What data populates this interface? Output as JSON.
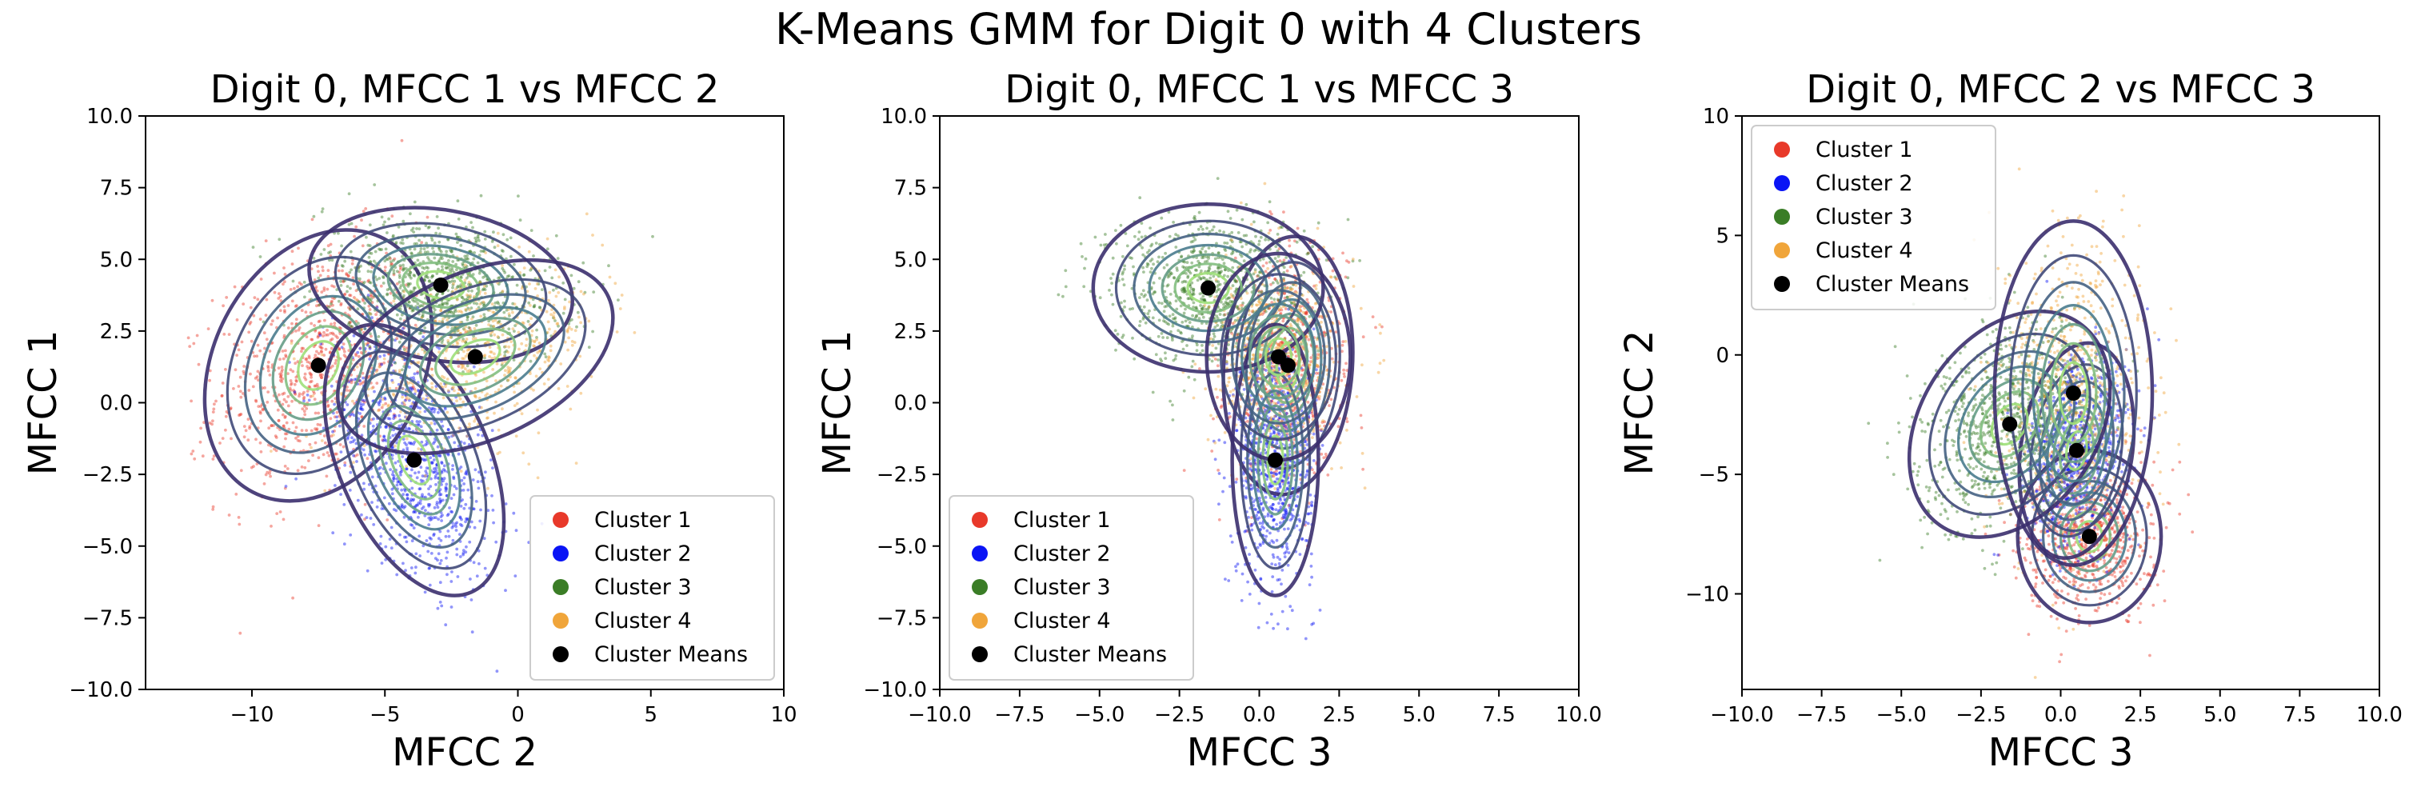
{
  "suptitle": "K-Means GMM for Digit 0 with 4 Clusters",
  "colors": {
    "cluster1": "#e8392a",
    "cluster2": "#0a14f5",
    "cluster3": "#3a7d26",
    "cluster4": "#f0a53a",
    "means": "#000000",
    "contour_outer": "#3b2f6e",
    "contour_mid": "#4a7c8e",
    "contour_inner": "#9fe07a"
  },
  "chart_data": [
    {
      "type": "scatter",
      "title": "Digit 0, MFCC 1 vs MFCC 2",
      "xlabel": "MFCC 2",
      "ylabel": "MFCC 1",
      "xlim": [
        -14,
        10
      ],
      "ylim": [
        -10,
        10
      ],
      "xticks": [
        -10,
        -5,
        0,
        5,
        10
      ],
      "xtick_labels": [
        "−10",
        "−5",
        "0",
        "5",
        "10"
      ],
      "yticks": [
        -10,
        -7.5,
        -5,
        -2.5,
        0,
        2.5,
        5,
        7.5,
        10
      ],
      "ytick_labels": [
        "−10.0",
        "−7.5",
        "−5.0",
        "−2.5",
        "0.0",
        "2.5",
        "5.0",
        "7.5",
        "10.0"
      ],
      "legend_placement": "lower-right",
      "legend": [
        "Cluster 1",
        "Cluster 2",
        "Cluster 3",
        "Cluster 4",
        "Cluster Means"
      ],
      "clusters": [
        {
          "name": "Cluster 1",
          "color": "#e8392a",
          "mean": [
            -7.5,
            1.3
          ],
          "sd": [
            1.9,
            2.1
          ],
          "rho": 0.25,
          "n": 900
        },
        {
          "name": "Cluster 2",
          "color": "#0a14f5",
          "mean": [
            -3.9,
            -2.0
          ],
          "sd": [
            1.5,
            2.1
          ],
          "rho": -0.45,
          "n": 900
        },
        {
          "name": "Cluster 3",
          "color": "#3a7d26",
          "mean": [
            -2.9,
            4.1
          ],
          "sd": [
            2.2,
            1.2
          ],
          "rho": -0.2,
          "n": 900
        },
        {
          "name": "Cluster 4",
          "color": "#f0a53a",
          "mean": [
            -1.6,
            1.6
          ],
          "sd": [
            2.3,
            1.5
          ],
          "rho": 0.4,
          "n": 650
        }
      ],
      "means_name": "Cluster Means"
    },
    {
      "type": "scatter",
      "title": "Digit 0, MFCC 1 vs MFCC 3",
      "xlabel": "MFCC 3",
      "ylabel": "MFCC 1",
      "xlim": [
        -10,
        10
      ],
      "ylim": [
        -10,
        10
      ],
      "xticks": [
        -10,
        -7.5,
        -5,
        -2.5,
        0,
        2.5,
        5,
        7.5,
        10
      ],
      "xtick_labels": [
        "−10.0",
        "−7.5",
        "−5.0",
        "−2.5",
        "0.0",
        "2.5",
        "5.0",
        "7.5",
        "10.0"
      ],
      "yticks": [
        -10,
        -7.5,
        -5,
        -2.5,
        0,
        2.5,
        5,
        7.5,
        10
      ],
      "ytick_labels": [
        "−10.0",
        "−7.5",
        "−5.0",
        "−2.5",
        "0.0",
        "2.5",
        "5.0",
        "7.5",
        "10.0"
      ],
      "legend_placement": "lower-left",
      "legend": [
        "Cluster 1",
        "Cluster 2",
        "Cluster 3",
        "Cluster 4",
        "Cluster Means"
      ],
      "clusters": [
        {
          "name": "Cluster 1",
          "color": "#e8392a",
          "mean": [
            0.9,
            1.3
          ],
          "sd": [
            0.9,
            2.0
          ],
          "rho": 0.1,
          "n": 700
        },
        {
          "name": "Cluster 2",
          "color": "#0a14f5",
          "mean": [
            0.5,
            -2.0
          ],
          "sd": [
            0.6,
            2.1
          ],
          "rho": 0.0,
          "n": 900
        },
        {
          "name": "Cluster 3",
          "color": "#3a7d26",
          "mean": [
            -1.6,
            4.0
          ],
          "sd": [
            1.6,
            1.3
          ],
          "rho": 0.0,
          "n": 900
        },
        {
          "name": "Cluster 4",
          "color": "#f0a53a",
          "mean": [
            0.6,
            1.6
          ],
          "sd": [
            1.0,
            1.6
          ],
          "rho": 0.0,
          "n": 700
        }
      ],
      "means_name": "Cluster Means"
    },
    {
      "type": "scatter",
      "title": "Digit 0, MFCC 2 vs MFCC 3",
      "xlabel": "MFCC 3",
      "ylabel": "MFCC 2",
      "xlim": [
        -10,
        10
      ],
      "ylim": [
        -14,
        10
      ],
      "xticks": [
        -10,
        -7.5,
        -5,
        -2.5,
        0,
        2.5,
        5,
        7.5,
        10
      ],
      "xtick_labels": [
        "−10.0",
        "−7.5",
        "−5.0",
        "−2.5",
        "0.0",
        "2.5",
        "5.0",
        "7.5",
        "10.0"
      ],
      "yticks": [
        -10,
        -5,
        0,
        5,
        10
      ],
      "ytick_labels": [
        "−10",
        "−5",
        "0",
        "5",
        "10"
      ],
      "legend_placement": "upper-left",
      "legend": [
        "Cluster 1",
        "Cluster 2",
        "Cluster 3",
        "Cluster 4",
        "Cluster Means"
      ],
      "clusters": [
        {
          "name": "Cluster 1",
          "color": "#e8392a",
          "mean": [
            0.9,
            -7.6
          ],
          "sd": [
            1.0,
            1.6
          ],
          "rho": 0.0,
          "n": 800
        },
        {
          "name": "Cluster 2",
          "color": "#0a14f5",
          "mean": [
            0.5,
            -4.0
          ],
          "sd": [
            0.8,
            2.0
          ],
          "rho": 0.2,
          "n": 900
        },
        {
          "name": "Cluster 3",
          "color": "#3a7d26",
          "mean": [
            -1.6,
            -2.9
          ],
          "sd": [
            1.4,
            2.1
          ],
          "rho": 0.3,
          "n": 900
        },
        {
          "name": "Cluster 4",
          "color": "#f0a53a",
          "mean": [
            0.4,
            -1.6
          ],
          "sd": [
            1.1,
            3.2
          ],
          "rho": 0.0,
          "n": 800
        }
      ],
      "means_name": "Cluster Means"
    }
  ]
}
